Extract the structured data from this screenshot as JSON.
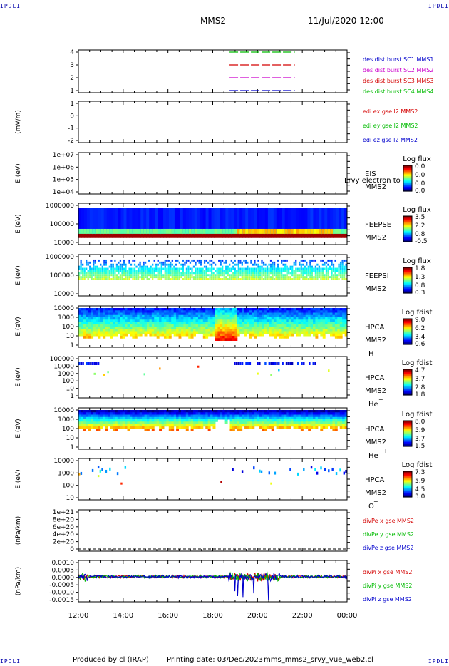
{
  "corners": {
    "tl": "IPDLI",
    "tr": "IPDLI",
    "bl": "IPDLI",
    "br": "IPDLI"
  },
  "header": {
    "title": "MMS2",
    "datetime": "11/Jul/2020 12:00"
  },
  "footer": {
    "produced": "Produced by cl (IRAP)",
    "printing_date": "Printing date: 03/Dec/2023",
    "file": "mms_mms2_srvy_vue_web2.cl"
  },
  "colors": {
    "ex": "#d40000",
    "ey": "#00bb00",
    "ez": "#0000cc",
    "mms2": "#cc00cc"
  },
  "chart_data": [
    {
      "id": "availability",
      "type": "line",
      "ylabel": "",
      "yticks": [
        "1",
        "2",
        "3",
        "4"
      ],
      "legend": [
        {
          "text": "des dist burst SC1 MMS1",
          "color": "#0000cc"
        },
        {
          "text": "des dist burst SC2 MMS2",
          "color": "#cc00cc"
        },
        {
          "text": "des dist burst SC3 MMS3",
          "color": "#d40000"
        },
        {
          "text": "des dist burst SC4 MMS4",
          "color": "#00bb00"
        }
      ],
      "series": [
        {
          "sc": 1,
          "start": "18:45",
          "end": "21:40"
        },
        {
          "sc": 2,
          "start": "18:45",
          "end": "21:40"
        },
        {
          "sc": 3,
          "start": "18:45",
          "end": "21:40"
        },
        {
          "sc": 4,
          "start": "18:45",
          "end": "21:40"
        }
      ]
    },
    {
      "id": "edi",
      "type": "line",
      "ylabel": "(mV/m)",
      "yticks": [
        "-2",
        "-1",
        "0",
        "1"
      ],
      "ylim": [
        -2,
        1.8
      ],
      "legend": [
        {
          "text": "edi ex gse l2 MMS2",
          "color": "#d40000"
        },
        {
          "text": "edi ey gse l2 MMS2",
          "color": "#00bb00"
        },
        {
          "text": "edi ez gse l2 MMS2",
          "color": "#0000cc"
        }
      ]
    },
    {
      "id": "eis",
      "type": "heatmap",
      "ylabel": "E (eV)",
      "yticks": [
        "1e+04",
        "1e+05",
        "1e+06",
        "1e+07"
      ],
      "labels": [
        "EIS",
        "MMS2"
      ],
      "overlay": "Lrvy electron to",
      "cbar_title": "Log flux",
      "cbar_ticks": [
        "0.0",
        "0.0",
        "0.0",
        "0.0"
      ]
    },
    {
      "id": "feepse",
      "type": "heatmap",
      "ylabel": "E (eV)",
      "yticks": [
        "10000",
        "100000",
        "1000000"
      ],
      "labels": [
        "FEEPSE",
        "MMS2"
      ],
      "cbar_title": "Log flux",
      "cbar_ticks": [
        "3.5",
        "2.2",
        "0.8",
        "-0.5"
      ]
    },
    {
      "id": "feepsi",
      "type": "heatmap",
      "ylabel": "E (eV)",
      "yticks": [
        "10000",
        "100000",
        "1000000"
      ],
      "labels": [
        "FEEPSI",
        "MMS2"
      ],
      "cbar_title": "Log flux",
      "cbar_ticks": [
        "1.8",
        "1.3",
        "0.8",
        "0.3"
      ]
    },
    {
      "id": "hpca_h",
      "type": "heatmap",
      "ylabel": "E (eV)",
      "yticks": [
        "1",
        "10",
        "100",
        "1000",
        "10000"
      ],
      "labels": [
        "HPCA",
        "MMS2",
        "H"
      ],
      "species_sup": "+",
      "cbar_title": "Log fdist",
      "cbar_ticks": [
        "9.0",
        "6.2",
        "3.4",
        "0.6"
      ]
    },
    {
      "id": "hpca_he",
      "type": "heatmap",
      "ylabel": "E (eV)",
      "yticks": [
        "1",
        "10",
        "100",
        "1000",
        "10000",
        "100000"
      ],
      "labels": [
        "HPCA",
        "MMS2",
        "He"
      ],
      "species_sup": "+",
      "cbar_title": "Log fdist",
      "cbar_ticks": [
        "4.7",
        "3.7",
        "2.8",
        "1.8"
      ]
    },
    {
      "id": "hpca_hepp",
      "type": "heatmap",
      "ylabel": "E (eV)",
      "yticks": [
        "1",
        "10",
        "100",
        "1000",
        "10000"
      ],
      "labels": [
        "HPCA",
        "MMS2",
        "He"
      ],
      "species_sup": "++",
      "cbar_title": "Log fdist",
      "cbar_ticks": [
        "8.0",
        "5.9",
        "3.7",
        "1.5"
      ]
    },
    {
      "id": "hpca_o",
      "type": "heatmap",
      "ylabel": "E (eV)",
      "yticks": [
        "10",
        "100",
        "1000",
        "10000"
      ],
      "labels": [
        "HPCA",
        "MMS2",
        "O"
      ],
      "species_sup": "+",
      "cbar_title": "Log fdist",
      "cbar_ticks": [
        "7.3",
        "5.9",
        "4.5",
        "3.0"
      ]
    },
    {
      "id": "divpe",
      "type": "line",
      "ylabel": "(nPa/km)",
      "yticks": [
        "0",
        "2e+20",
        "4e+20",
        "6e+20",
        "8e+20",
        "1e+21"
      ],
      "legend": [
        {
          "text": "divPe x gse MMS2",
          "color": "#d40000"
        },
        {
          "text": "divPe y gse MMS2",
          "color": "#00bb00"
        },
        {
          "text": "divPe z gse MMS2",
          "color": "#0000cc"
        }
      ]
    },
    {
      "id": "divpi",
      "type": "line",
      "ylabel": "(nPa/km)",
      "yticks": [
        "-0.0015",
        "-0.0010",
        "-0.0005",
        "0.0000",
        "0.0005",
        "0.0010"
      ],
      "ylim": [
        -0.0017,
        0.0011
      ],
      "legend": [
        {
          "text": "divPi x gse MMS2",
          "color": "#d40000"
        },
        {
          "text": "divPi y gse MMS2",
          "color": "#00bb00"
        },
        {
          "text": "divPi z gse MMS2",
          "color": "#0000cc"
        }
      ]
    }
  ],
  "xaxis": {
    "ticks": [
      "12:00",
      "14:00",
      "16:00",
      "18:00",
      "20:00",
      "22:00",
      "00:00"
    ]
  }
}
